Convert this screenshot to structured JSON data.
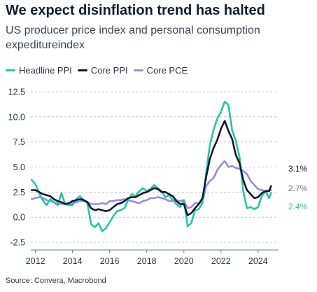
{
  "title": "We expect disinflation trend has halted",
  "subtitle": "US producer price index and personal consumption expeditureindex",
  "source": "Source: Convera, Macrobond",
  "chart_data": {
    "type": "line",
    "ylim": [
      -2.5,
      12.5
    ],
    "xlim": [
      2011.75,
      2025.1
    ],
    "yticks": [
      12.5,
      10.0,
      7.5,
      5.0,
      2.5,
      0.0,
      -2.5
    ],
    "ytick_labels": [
      "12.5",
      "10.0",
      "7.5",
      "5.0",
      "2.5",
      "0.0",
      "-2.5"
    ],
    "xticks": [
      2012,
      2014,
      2016,
      2018,
      2020,
      2022,
      2024
    ],
    "xtick_labels": [
      "2012",
      "2014",
      "2016",
      "2018",
      "2020",
      "2022",
      "2024"
    ],
    "grid": "horizontal dashed",
    "legend_position": "top-left",
    "series": [
      {
        "name": "Headline PPI",
        "color": "#2bc1a7",
        "end_label": "2.4%",
        "x": [
          2011.8,
          2012.0,
          2012.2,
          2012.4,
          2012.6,
          2012.8,
          2013.0,
          2013.2,
          2013.4,
          2013.6,
          2013.8,
          2014.0,
          2014.2,
          2014.4,
          2014.6,
          2014.8,
          2015.0,
          2015.2,
          2015.4,
          2015.6,
          2015.8,
          2016.0,
          2016.2,
          2016.4,
          2016.6,
          2016.8,
          2017.0,
          2017.2,
          2017.4,
          2017.6,
          2017.8,
          2018.0,
          2018.2,
          2018.4,
          2018.6,
          2018.8,
          2019.0,
          2019.2,
          2019.4,
          2019.6,
          2019.8,
          2020.0,
          2020.2,
          2020.4,
          2020.6,
          2020.8,
          2021.0,
          2021.2,
          2021.4,
          2021.6,
          2021.8,
          2022.0,
          2022.2,
          2022.4,
          2022.6,
          2022.8,
          2023.0,
          2023.2,
          2023.4,
          2023.6,
          2023.8,
          2024.0,
          2024.2,
          2024.4,
          2024.6,
          2024.7
        ],
        "y": [
          3.7,
          3.3,
          2.4,
          1.7,
          1.2,
          1.8,
          1.5,
          1.2,
          2.4,
          1.3,
          1.2,
          1.2,
          1.8,
          2.1,
          1.7,
          1.4,
          -0.7,
          -1.0,
          -0.6,
          -1.4,
          -1.1,
          -0.5,
          0.1,
          0.6,
          0.7,
          0.9,
          1.7,
          2.3,
          2.1,
          2.6,
          2.9,
          2.6,
          2.8,
          3.2,
          2.9,
          2.6,
          2.0,
          2.2,
          1.7,
          1.3,
          1.0,
          1.7,
          -0.9,
          -0.6,
          0.7,
          0.8,
          1.4,
          4.4,
          7.2,
          8.7,
          9.8,
          10.5,
          11.5,
          11.2,
          8.7,
          7.6,
          6.0,
          2.6,
          0.9,
          1.0,
          0.8,
          1.0,
          2.1,
          2.6,
          1.9,
          2.4
        ]
      },
      {
        "name": "Core PPI",
        "color": "#0e1b2c",
        "end_label": "3.1%",
        "x": [
          2011.8,
          2012.0,
          2012.2,
          2012.4,
          2012.6,
          2012.8,
          2013.0,
          2013.2,
          2013.4,
          2013.6,
          2013.8,
          2014.0,
          2014.2,
          2014.4,
          2014.6,
          2014.8,
          2015.0,
          2015.2,
          2015.4,
          2015.6,
          2015.8,
          2016.0,
          2016.2,
          2016.4,
          2016.6,
          2016.8,
          2017.0,
          2017.2,
          2017.4,
          2017.6,
          2017.8,
          2018.0,
          2018.2,
          2018.4,
          2018.6,
          2018.8,
          2019.0,
          2019.2,
          2019.4,
          2019.6,
          2019.8,
          2020.0,
          2020.2,
          2020.4,
          2020.6,
          2020.8,
          2021.0,
          2021.2,
          2021.4,
          2021.6,
          2021.8,
          2022.0,
          2022.2,
          2022.4,
          2022.6,
          2022.8,
          2023.0,
          2023.2,
          2023.4,
          2023.6,
          2023.8,
          2024.0,
          2024.2,
          2024.4,
          2024.6,
          2024.7
        ],
        "y": [
          2.7,
          2.7,
          2.5,
          2.3,
          2.2,
          2.1,
          1.8,
          1.6,
          1.5,
          1.3,
          1.4,
          1.6,
          1.7,
          1.8,
          1.7,
          1.5,
          0.9,
          0.7,
          0.8,
          0.7,
          0.6,
          0.7,
          1.0,
          1.3,
          1.4,
          1.6,
          1.9,
          2.0,
          2.0,
          2.2,
          2.4,
          2.5,
          2.7,
          2.9,
          2.8,
          2.5,
          2.5,
          2.3,
          2.1,
          1.6,
          1.3,
          1.3,
          0.2,
          0.4,
          0.9,
          1.3,
          1.9,
          4.0,
          5.8,
          6.9,
          7.7,
          8.8,
          9.6,
          8.6,
          7.8,
          6.2,
          5.4,
          3.7,
          2.7,
          2.3,
          1.9,
          2.0,
          2.4,
          2.6,
          2.6,
          3.1
        ]
      },
      {
        "name": "Core PCE",
        "color": "#9b8ae0",
        "end_label": "2.7%",
        "x": [
          2011.8,
          2012.0,
          2012.2,
          2012.4,
          2012.6,
          2012.8,
          2013.0,
          2013.2,
          2013.4,
          2013.6,
          2013.8,
          2014.0,
          2014.2,
          2014.4,
          2014.6,
          2014.8,
          2015.0,
          2015.2,
          2015.4,
          2015.6,
          2015.8,
          2016.0,
          2016.2,
          2016.4,
          2016.6,
          2016.8,
          2017.0,
          2017.2,
          2017.4,
          2017.6,
          2017.8,
          2018.0,
          2018.2,
          2018.4,
          2018.6,
          2018.8,
          2019.0,
          2019.2,
          2019.4,
          2019.6,
          2019.8,
          2020.0,
          2020.2,
          2020.4,
          2020.6,
          2020.8,
          2021.0,
          2021.2,
          2021.4,
          2021.6,
          2021.8,
          2022.0,
          2022.2,
          2022.4,
          2022.6,
          2022.8,
          2023.0,
          2023.2,
          2023.4,
          2023.6,
          2023.8,
          2024.0,
          2024.2,
          2024.4,
          2024.6,
          2024.7
        ],
        "y": [
          1.8,
          1.9,
          2.0,
          1.9,
          1.7,
          1.6,
          1.5,
          1.3,
          1.3,
          1.4,
          1.3,
          1.4,
          1.5,
          1.6,
          1.6,
          1.5,
          1.3,
          1.3,
          1.3,
          1.4,
          1.3,
          1.6,
          1.6,
          1.7,
          1.7,
          1.8,
          1.7,
          1.6,
          1.5,
          1.4,
          1.6,
          1.7,
          1.9,
          1.9,
          2.0,
          1.9,
          1.8,
          1.6,
          1.6,
          1.7,
          1.6,
          1.7,
          0.9,
          1.0,
          1.4,
          1.4,
          1.5,
          3.1,
          3.6,
          3.9,
          4.7,
          5.2,
          5.6,
          5.0,
          5.1,
          4.9,
          4.8,
          4.6,
          4.3,
          3.6,
          3.2,
          2.8,
          2.7,
          2.6,
          2.7,
          2.7
        ]
      }
    ]
  }
}
